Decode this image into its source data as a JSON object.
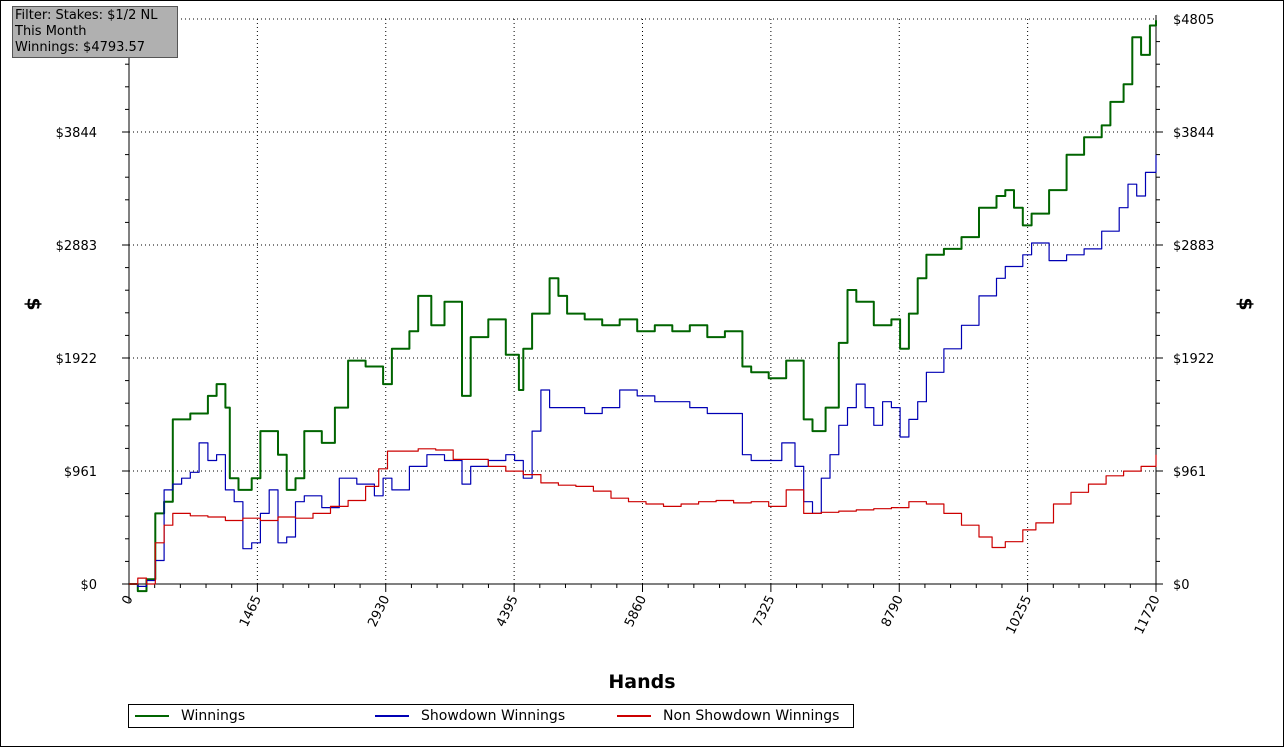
{
  "info": {
    "line1": "Filter: Stakes: $1/2 NL",
    "line2": "This Month",
    "line3": "Winnings: $4793.57"
  },
  "chart_data": {
    "type": "line",
    "xlabel": "Hands",
    "ylabel": "$",
    "xlim": [
      0,
      11720
    ],
    "ylim": [
      0,
      4805
    ],
    "x_ticks": [
      "0",
      "1465",
      "2930",
      "4395",
      "5860",
      "7325",
      "8790",
      "10255",
      "11720"
    ],
    "y_ticks": [
      "$0",
      "$961",
      "$1922",
      "$2883",
      "$3844",
      "$4805"
    ],
    "grid": true,
    "legend_position": "bottom",
    "series": [
      {
        "name": "Winnings",
        "color": "#006400",
        "points": [
          [
            0,
            0
          ],
          [
            100,
            -60
          ],
          [
            200,
            40
          ],
          [
            300,
            600
          ],
          [
            400,
            700
          ],
          [
            500,
            1400
          ],
          [
            700,
            1450
          ],
          [
            900,
            1600
          ],
          [
            1000,
            1700
          ],
          [
            1100,
            1500
          ],
          [
            1150,
            900
          ],
          [
            1250,
            800
          ],
          [
            1400,
            900
          ],
          [
            1500,
            1300
          ],
          [
            1700,
            1100
          ],
          [
            1800,
            800
          ],
          [
            1900,
            900
          ],
          [
            2000,
            1300
          ],
          [
            2200,
            1200
          ],
          [
            2350,
            1500
          ],
          [
            2500,
            1900
          ],
          [
            2700,
            1850
          ],
          [
            2900,
            1700
          ],
          [
            3000,
            2000
          ],
          [
            3200,
            2150
          ],
          [
            3300,
            2450
          ],
          [
            3450,
            2200
          ],
          [
            3600,
            2400
          ],
          [
            3800,
            1600
          ],
          [
            3900,
            2100
          ],
          [
            4100,
            2250
          ],
          [
            4300,
            1950
          ],
          [
            4450,
            1650
          ],
          [
            4500,
            2000
          ],
          [
            4600,
            2300
          ],
          [
            4800,
            2600
          ],
          [
            4900,
            2450
          ],
          [
            5000,
            2300
          ],
          [
            5200,
            2250
          ],
          [
            5400,
            2200
          ],
          [
            5600,
            2250
          ],
          [
            5800,
            2150
          ],
          [
            6000,
            2200
          ],
          [
            6200,
            2150
          ],
          [
            6400,
            2200
          ],
          [
            6600,
            2100
          ],
          [
            6800,
            2150
          ],
          [
            7000,
            1850
          ],
          [
            7100,
            1800
          ],
          [
            7300,
            1750
          ],
          [
            7500,
            1900
          ],
          [
            7700,
            1400
          ],
          [
            7800,
            1300
          ],
          [
            7950,
            1500
          ],
          [
            8100,
            2050
          ],
          [
            8200,
            2500
          ],
          [
            8300,
            2400
          ],
          [
            8500,
            2200
          ],
          [
            8700,
            2250
          ],
          [
            8800,
            2000
          ],
          [
            8900,
            2300
          ],
          [
            9000,
            2600
          ],
          [
            9100,
            2800
          ],
          [
            9300,
            2850
          ],
          [
            9500,
            2950
          ],
          [
            9700,
            3200
          ],
          [
            9900,
            3300
          ],
          [
            10000,
            3350
          ],
          [
            10100,
            3200
          ],
          [
            10200,
            3050
          ],
          [
            10300,
            3150
          ],
          [
            10500,
            3350
          ],
          [
            10700,
            3650
          ],
          [
            10900,
            3800
          ],
          [
            11100,
            3900
          ],
          [
            11200,
            4100
          ],
          [
            11350,
            4250
          ],
          [
            11450,
            4650
          ],
          [
            11550,
            4500
          ],
          [
            11650,
            4750
          ],
          [
            11720,
            4794
          ]
        ]
      },
      {
        "name": "Showdown Winnings",
        "color": "#0000b4",
        "points": [
          [
            0,
            0
          ],
          [
            100,
            -20
          ],
          [
            200,
            30
          ],
          [
            300,
            200
          ],
          [
            400,
            800
          ],
          [
            500,
            850
          ],
          [
            600,
            900
          ],
          [
            700,
            950
          ],
          [
            800,
            1200
          ],
          [
            900,
            1050
          ],
          [
            1000,
            1100
          ],
          [
            1100,
            800
          ],
          [
            1200,
            700
          ],
          [
            1300,
            300
          ],
          [
            1400,
            350
          ],
          [
            1500,
            600
          ],
          [
            1600,
            800
          ],
          [
            1700,
            350
          ],
          [
            1800,
            400
          ],
          [
            1900,
            700
          ],
          [
            2000,
            750
          ],
          [
            2200,
            650
          ],
          [
            2400,
            900
          ],
          [
            2600,
            850
          ],
          [
            2800,
            750
          ],
          [
            2900,
            900
          ],
          [
            3000,
            800
          ],
          [
            3200,
            1000
          ],
          [
            3400,
            1100
          ],
          [
            3600,
            1050
          ],
          [
            3800,
            850
          ],
          [
            3900,
            1000
          ],
          [
            4100,
            1050
          ],
          [
            4300,
            1100
          ],
          [
            4400,
            1050
          ],
          [
            4500,
            900
          ],
          [
            4600,
            1300
          ],
          [
            4700,
            1650
          ],
          [
            4800,
            1500
          ],
          [
            5000,
            1500
          ],
          [
            5200,
            1450
          ],
          [
            5400,
            1500
          ],
          [
            5600,
            1650
          ],
          [
            5800,
            1600
          ],
          [
            6000,
            1550
          ],
          [
            6200,
            1550
          ],
          [
            6400,
            1500
          ],
          [
            6600,
            1450
          ],
          [
            6800,
            1450
          ],
          [
            7000,
            1100
          ],
          [
            7100,
            1050
          ],
          [
            7300,
            1050
          ],
          [
            7450,
            1200
          ],
          [
            7600,
            1000
          ],
          [
            7700,
            700
          ],
          [
            7800,
            600
          ],
          [
            7900,
            900
          ],
          [
            8000,
            1100
          ],
          [
            8100,
            1350
          ],
          [
            8200,
            1500
          ],
          [
            8300,
            1700
          ],
          [
            8400,
            1500
          ],
          [
            8500,
            1350
          ],
          [
            8600,
            1550
          ],
          [
            8700,
            1500
          ],
          [
            8800,
            1250
          ],
          [
            8900,
            1400
          ],
          [
            9000,
            1550
          ],
          [
            9100,
            1800
          ],
          [
            9300,
            2000
          ],
          [
            9500,
            2200
          ],
          [
            9700,
            2450
          ],
          [
            9900,
            2600
          ],
          [
            10000,
            2700
          ],
          [
            10200,
            2800
          ],
          [
            10300,
            2900
          ],
          [
            10500,
            2750
          ],
          [
            10700,
            2800
          ],
          [
            10900,
            2850
          ],
          [
            11100,
            3000
          ],
          [
            11300,
            3200
          ],
          [
            11400,
            3400
          ],
          [
            11500,
            3300
          ],
          [
            11600,
            3500
          ],
          [
            11720,
            3650
          ]
        ]
      },
      {
        "name": "Non Showdown Winnings",
        "color": "#cc0000",
        "points": [
          [
            0,
            0
          ],
          [
            100,
            50
          ],
          [
            200,
            0
          ],
          [
            300,
            350
          ],
          [
            400,
            500
          ],
          [
            500,
            600
          ],
          [
            700,
            580
          ],
          [
            900,
            570
          ],
          [
            1100,
            540
          ],
          [
            1300,
            560
          ],
          [
            1500,
            540
          ],
          [
            1700,
            570
          ],
          [
            1900,
            560
          ],
          [
            2100,
            600
          ],
          [
            2300,
            660
          ],
          [
            2500,
            710
          ],
          [
            2700,
            830
          ],
          [
            2850,
            980
          ],
          [
            2950,
            1130
          ],
          [
            3100,
            1130
          ],
          [
            3300,
            1150
          ],
          [
            3500,
            1140
          ],
          [
            3700,
            1060
          ],
          [
            3900,
            1060
          ],
          [
            4100,
            1000
          ],
          [
            4300,
            960
          ],
          [
            4500,
            930
          ],
          [
            4700,
            860
          ],
          [
            4900,
            840
          ],
          [
            5100,
            830
          ],
          [
            5300,
            790
          ],
          [
            5500,
            730
          ],
          [
            5700,
            700
          ],
          [
            5900,
            680
          ],
          [
            6100,
            660
          ],
          [
            6300,
            680
          ],
          [
            6500,
            700
          ],
          [
            6700,
            710
          ],
          [
            6900,
            690
          ],
          [
            7100,
            700
          ],
          [
            7300,
            660
          ],
          [
            7500,
            800
          ],
          [
            7700,
            600
          ],
          [
            7900,
            610
          ],
          [
            8100,
            620
          ],
          [
            8300,
            630
          ],
          [
            8500,
            640
          ],
          [
            8700,
            650
          ],
          [
            8900,
            700
          ],
          [
            9100,
            680
          ],
          [
            9300,
            600
          ],
          [
            9500,
            500
          ],
          [
            9700,
            400
          ],
          [
            9850,
            310
          ],
          [
            10000,
            360
          ],
          [
            10200,
            460
          ],
          [
            10350,
            520
          ],
          [
            10550,
            680
          ],
          [
            10750,
            780
          ],
          [
            10950,
            850
          ],
          [
            11150,
            920
          ],
          [
            11350,
            960
          ],
          [
            11550,
            1000
          ],
          [
            11720,
            1100
          ]
        ]
      }
    ]
  }
}
